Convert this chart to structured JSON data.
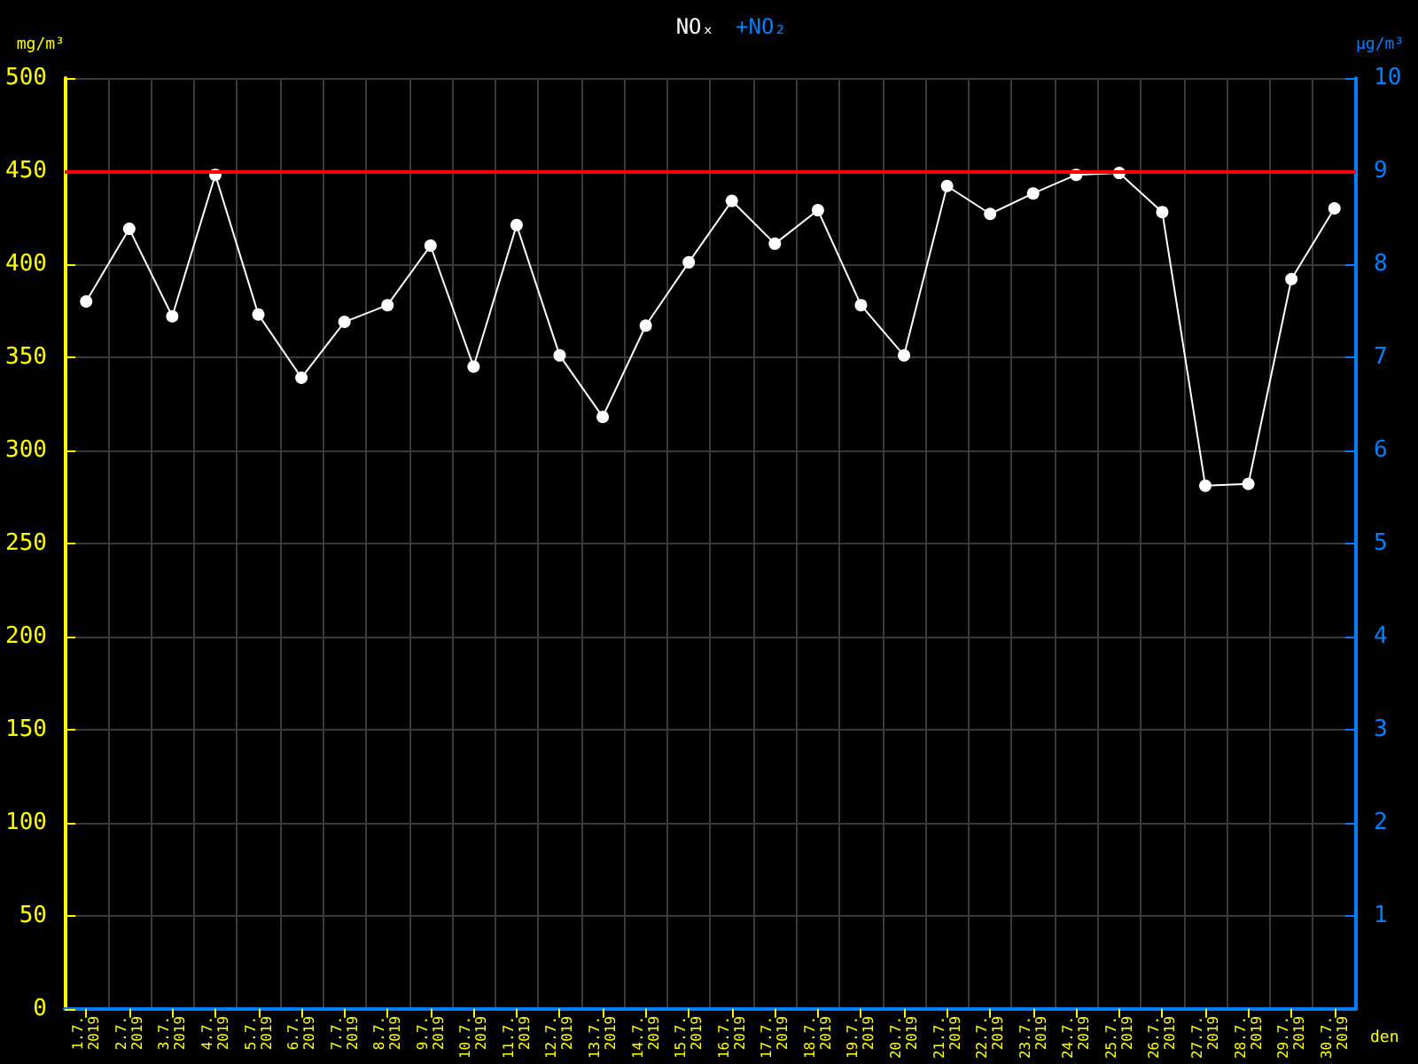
{
  "chart_data": {
    "type": "line",
    "title": "NOₓ",
    "subtitle": "+NO₂",
    "xlabel": "den",
    "ylabel": "mg/m³",
    "y2label": "µg/m³",
    "categories": [
      "1.7. 2019",
      "2.7. 2019",
      "3.7. 2019",
      "4.7. 2019",
      "5.7. 2019",
      "6.7. 2019",
      "7.7. 2019",
      "8.7. 2019",
      "9.7. 2019",
      "10.7. 2019",
      "11.7. 2019",
      "12.7. 2019",
      "13.7. 2019",
      "14.7. 2019",
      "15.7. 2019",
      "16.7. 2019",
      "17.7. 2019",
      "18.7. 2019",
      "19.7. 2019",
      "20.7. 2019",
      "21.7. 2019",
      "22.7. 2019",
      "23.7. 2019",
      "24.7. 2019",
      "25.7. 2019",
      "26.7. 2019",
      "27.7. 2019",
      "28.7. 2019",
      "29.7. 2019",
      "30.7. 2019"
    ],
    "series": [
      {
        "color": "#ffffff",
        "values": [
          380,
          419,
          372,
          448,
          373,
          339,
          369,
          378,
          410,
          345,
          421,
          351,
          318,
          367,
          401,
          434,
          411,
          429,
          378,
          351,
          442,
          427,
          438,
          448,
          449,
          428,
          281,
          282,
          392,
          430
        ]
      }
    ],
    "ylim": [
      0,
      500
    ],
    "yticks": [
      0,
      50,
      100,
      150,
      200,
      250,
      300,
      350,
      400,
      450,
      500
    ],
    "y2lim": [
      0,
      10
    ],
    "y2ticks": [
      1,
      2,
      3,
      4,
      5,
      6,
      7,
      8,
      9,
      10
    ],
    "ref_lines": [
      {
        "axis": "y",
        "value": 450,
        "color": "#ff0000"
      }
    ],
    "grid": true,
    "marker": "circle",
    "line_style": "solid"
  }
}
